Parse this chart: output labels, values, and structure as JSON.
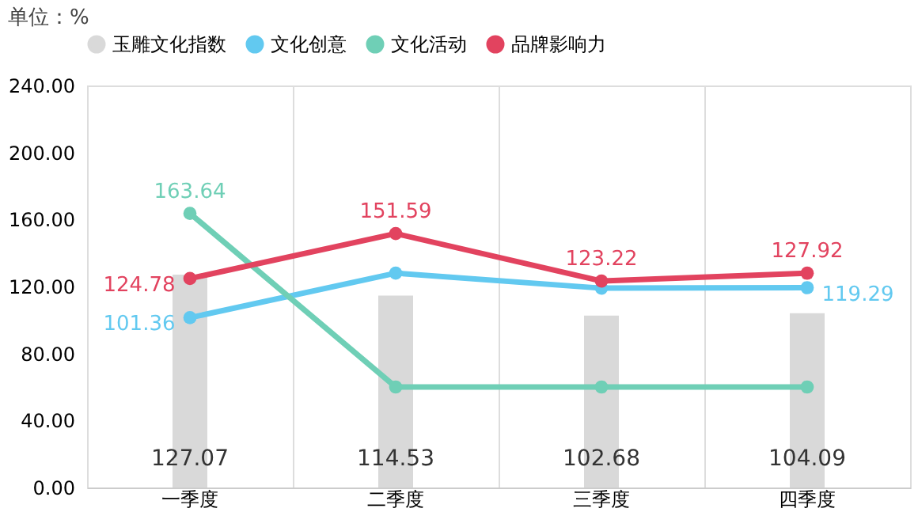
{
  "chart_data": {
    "type": "bar",
    "title": "单位：%",
    "categories": [
      "一季度",
      "二季度",
      "三季度",
      "四季度"
    ],
    "series": [
      {
        "name": "玉雕文化指数",
        "color": "#d9d9d9",
        "values": [
          127.07,
          114.53,
          102.68,
          104.09
        ],
        "value_labels": [
          "127.07",
          "114.53",
          "102.68",
          "104.09"
        ]
      },
      {
        "name": "文化创意",
        "type": "line",
        "color": "#62c9f0",
        "values": [
          101.36,
          128,
          119,
          119.29
        ],
        "value_labels": [
          "101.36",
          null,
          null,
          "119.29"
        ]
      },
      {
        "name": "文化活动",
        "type": "line",
        "color": "#6fcfb6",
        "values": [
          163.64,
          60,
          60,
          60
        ],
        "value_labels": [
          "163.64",
          null,
          null,
          null
        ]
      },
      {
        "name": "品牌影响力",
        "type": "line",
        "color": "#e2435f",
        "values": [
          124.78,
          151.59,
          123.22,
          127.92
        ],
        "value_labels": [
          "124.78",
          "151.59",
          "123.22",
          "127.92"
        ]
      }
    ],
    "ylim": [
      0,
      240
    ],
    "yticks": [
      {
        "value": 0,
        "label": "0.00"
      },
      {
        "value": 40,
        "label": "40.00"
      },
      {
        "value": 80,
        "label": "80.00"
      },
      {
        "value": 120,
        "label": "120.00"
      },
      {
        "value": 160,
        "label": "160.00"
      },
      {
        "value": 200,
        "label": "200.00"
      },
      {
        "value": 240,
        "label": "240.00"
      }
    ],
    "grid": "x",
    "legend": "top",
    "marker": "circle",
    "line_style": "solid"
  }
}
